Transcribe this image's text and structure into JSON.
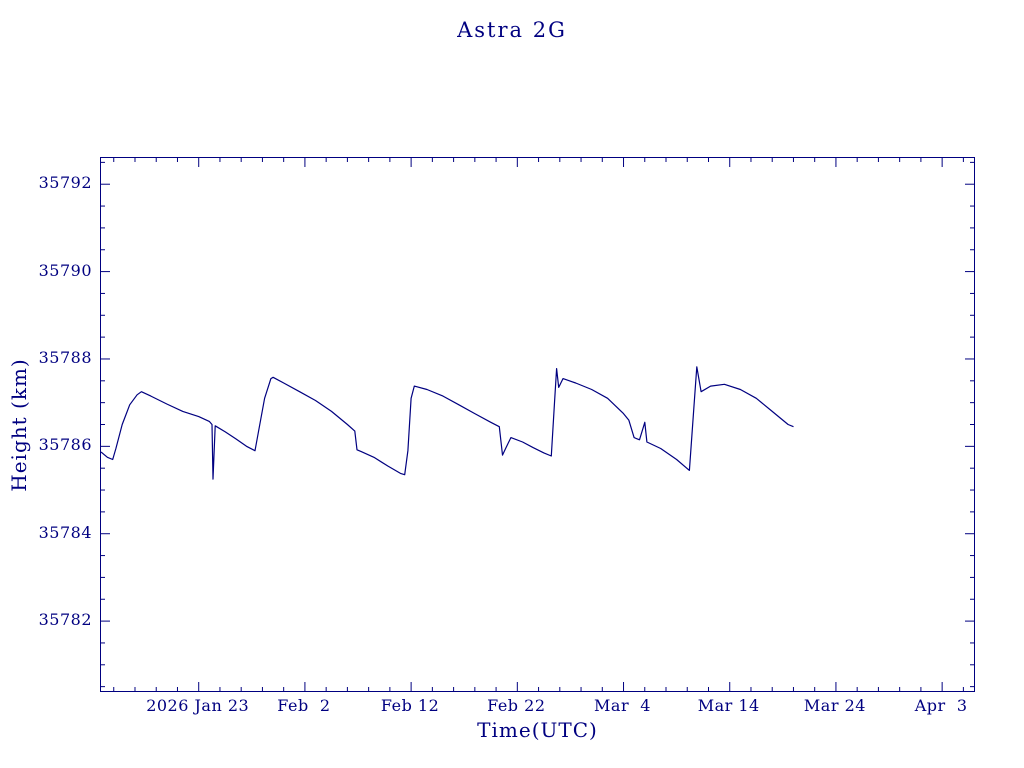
{
  "chart_data": {
    "type": "line",
    "title": "Astra 2G",
    "xlabel": "Time(UTC)",
    "ylabel": "Height (km)",
    "line_color": "#000080",
    "axis_color": "#000080",
    "x_unit": "days relative to 2026 Jan 23",
    "xlim": [
      -9.2,
      73.0
    ],
    "ylim": [
      35780.4,
      35792.6
    ],
    "x_ticks": [
      {
        "value": 0,
        "label": "2026 Jan 23"
      },
      {
        "value": 10,
        "label": "Feb  2"
      },
      {
        "value": 20,
        "label": "Feb 12"
      },
      {
        "value": 30,
        "label": "Feb 22"
      },
      {
        "value": 40,
        "label": "Mar  4"
      },
      {
        "value": 50,
        "label": "Mar 14"
      },
      {
        "value": 60,
        "label": "Mar 24"
      },
      {
        "value": 70,
        "label": "Apr  3"
      }
    ],
    "y_ticks": [
      {
        "value": 35782,
        "label": "35782"
      },
      {
        "value": 35784,
        "label": "35784"
      },
      {
        "value": 35786,
        "label": "35786"
      },
      {
        "value": 35788,
        "label": "35788"
      },
      {
        "value": 35790,
        "label": "35790"
      },
      {
        "value": 35792,
        "label": "35792"
      }
    ],
    "x_minor_step": 2,
    "y_minor_step": 0.5,
    "points": [
      [
        -9.2,
        35785.87
      ],
      [
        -8.6,
        35785.75
      ],
      [
        -8.1,
        35785.7
      ],
      [
        -7.8,
        35785.95
      ],
      [
        -7.2,
        35786.5
      ],
      [
        -6.5,
        35786.95
      ],
      [
        -5.8,
        35787.18
      ],
      [
        -5.4,
        35787.25
      ],
      [
        -4.5,
        35787.15
      ],
      [
        -3.0,
        35786.97
      ],
      [
        -1.5,
        35786.8
      ],
      [
        0.0,
        35786.68
      ],
      [
        1.0,
        35786.57
      ],
      [
        1.25,
        35786.5
      ],
      [
        1.35,
        35785.25
      ],
      [
        1.55,
        35786.47
      ],
      [
        2.5,
        35786.33
      ],
      [
        3.5,
        35786.17
      ],
      [
        4.5,
        35786.0
      ],
      [
        5.3,
        35785.9
      ],
      [
        5.6,
        35786.3
      ],
      [
        6.2,
        35787.1
      ],
      [
        6.8,
        35787.55
      ],
      [
        7.0,
        35787.58
      ],
      [
        8.0,
        35787.45
      ],
      [
        9.5,
        35787.25
      ],
      [
        11.0,
        35787.05
      ],
      [
        12.5,
        35786.8
      ],
      [
        14.0,
        35786.5
      ],
      [
        14.7,
        35786.35
      ],
      [
        14.9,
        35785.92
      ],
      [
        15.3,
        35785.88
      ],
      [
        16.5,
        35785.75
      ],
      [
        17.8,
        35785.55
      ],
      [
        19.0,
        35785.38
      ],
      [
        19.4,
        35785.35
      ],
      [
        19.7,
        35785.9
      ],
      [
        20.0,
        35787.1
      ],
      [
        20.3,
        35787.38
      ],
      [
        21.5,
        35787.3
      ],
      [
        23.0,
        35787.15
      ],
      [
        24.5,
        35786.95
      ],
      [
        26.0,
        35786.75
      ],
      [
        27.5,
        35786.55
      ],
      [
        28.3,
        35786.45
      ],
      [
        28.6,
        35785.8
      ],
      [
        28.9,
        35785.95
      ],
      [
        29.4,
        35786.2
      ],
      [
        30.5,
        35786.1
      ],
      [
        31.5,
        35785.97
      ],
      [
        32.5,
        35785.85
      ],
      [
        33.2,
        35785.78
      ],
      [
        33.5,
        35787.0
      ],
      [
        33.7,
        35787.78
      ],
      [
        33.9,
        35787.35
      ],
      [
        34.3,
        35787.55
      ],
      [
        35.5,
        35787.45
      ],
      [
        37.0,
        35787.3
      ],
      [
        38.5,
        35787.1
      ],
      [
        40.0,
        35786.75
      ],
      [
        40.5,
        35786.6
      ],
      [
        41.0,
        35786.2
      ],
      [
        41.5,
        35786.15
      ],
      [
        42.0,
        35786.55
      ],
      [
        42.2,
        35786.1
      ],
      [
        43.5,
        35785.95
      ],
      [
        45.0,
        35785.7
      ],
      [
        46.2,
        35785.45
      ],
      [
        46.6,
        35786.8
      ],
      [
        46.9,
        35787.82
      ],
      [
        47.3,
        35787.25
      ],
      [
        48.2,
        35787.38
      ],
      [
        49.5,
        35787.42
      ],
      [
        51.0,
        35787.3
      ],
      [
        52.5,
        35787.1
      ],
      [
        54.0,
        35786.8
      ],
      [
        55.5,
        35786.5
      ],
      [
        56.0,
        35786.45
      ]
    ]
  }
}
